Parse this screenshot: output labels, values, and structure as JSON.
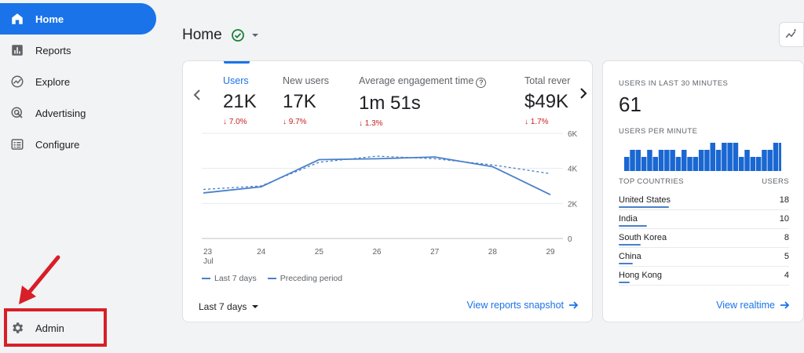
{
  "sidebar": {
    "items": [
      {
        "label": "Home",
        "icon": "home-icon"
      },
      {
        "label": "Reports",
        "icon": "bar-chart-icon"
      },
      {
        "label": "Explore",
        "icon": "explore-icon"
      },
      {
        "label": "Advertising",
        "icon": "advertising-icon"
      },
      {
        "label": "Configure",
        "icon": "configure-icon"
      }
    ],
    "admin_label": "Admin"
  },
  "header": {
    "title": "Home"
  },
  "metrics": [
    {
      "label": "Users",
      "value": "21K",
      "change": "↓ 7.0%"
    },
    {
      "label": "New users",
      "value": "17K",
      "change": "↓ 9.7%"
    },
    {
      "label": "Average engagement time",
      "value": "1m 51s",
      "change": "↓ 1.3%"
    },
    {
      "label": "Total rever",
      "value": "$49K",
      "change": "↓ 1.7%"
    }
  ],
  "chart_data": {
    "type": "line",
    "x": [
      "23",
      "24",
      "25",
      "26",
      "27",
      "28",
      "29"
    ],
    "x_sublabel": "Jul",
    "ylim": [
      0,
      6000
    ],
    "y_ticks": [
      "6K",
      "4K",
      "2K",
      "0"
    ],
    "series": [
      {
        "name": "Last 7 days",
        "style": "solid",
        "values": [
          2600,
          2950,
          4500,
          4550,
          4650,
          4100,
          2500
        ]
      },
      {
        "name": "Preceding period",
        "style": "dashed",
        "values": [
          2800,
          3000,
          4350,
          4700,
          4550,
          4200,
          3700
        ]
      }
    ],
    "grid": true,
    "legend_position": "bottom-left"
  },
  "main_card": {
    "date_range": "Last 7 days",
    "snapshot_link": "View reports snapshot"
  },
  "realtime": {
    "users_label": "USERS IN LAST 30 MINUTES",
    "users_value": "61",
    "per_minute_label": "USERS PER MINUTE",
    "per_minute_values": [
      2,
      3,
      3,
      2,
      3,
      2,
      3,
      3,
      3,
      2,
      3,
      2,
      2,
      3,
      3,
      4,
      3,
      4,
      4,
      4,
      2,
      3,
      2,
      2,
      3,
      3,
      4,
      4,
      2,
      1,
      3,
      4
    ],
    "countries_header": "TOP COUNTRIES",
    "users_header": "USERS",
    "countries": [
      {
        "name": "United States",
        "users": "18",
        "share": 1.0
      },
      {
        "name": "India",
        "users": "10",
        "share": 0.56
      },
      {
        "name": "South Korea",
        "users": "8",
        "share": 0.44
      },
      {
        "name": "China",
        "users": "5",
        "share": 0.28
      },
      {
        "name": "Hong Kong",
        "users": "4",
        "share": 0.22
      }
    ],
    "link": "View realtime"
  },
  "colors": {
    "accent": "#1a73e8",
    "series": "#4a80c9",
    "negative": "#c5221f",
    "annotation": "#d81e27"
  }
}
